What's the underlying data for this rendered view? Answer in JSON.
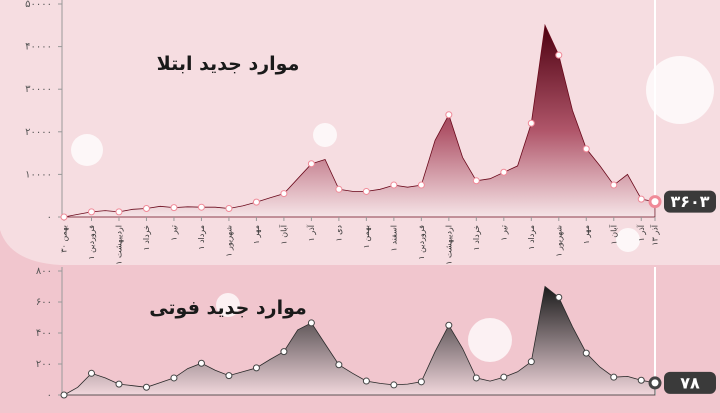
{
  "chart_data": [
    {
      "type": "area",
      "title": "موارد جدید ابتلا",
      "color": "#6b0a1c",
      "categories": [
        "۳۰ بهمن",
        null,
        "۱ فروردین",
        null,
        "۱ اردیبهشت",
        null,
        "۱ خرداد",
        null,
        "۱ تیر",
        null,
        "۱ مرداد",
        null,
        "۱ شهریور",
        null,
        "۱ مهر",
        null,
        "۱ آبان",
        null,
        "۱ آذر",
        null,
        "۱ دی",
        null,
        "۱ بهمن",
        null,
        "۱ اسفند",
        null,
        "۱ فروردین",
        null,
        "۱ اردیبهشت",
        null,
        "۱ خرداد",
        null,
        "۱ تیر",
        null,
        "۱ مرداد",
        null,
        "۱ شهریور",
        null,
        "۱ مهر",
        null,
        "۱ آبان",
        null,
        "۱ آذر",
        "۱۳ آذر"
      ],
      "values": [
        0,
        600,
        1200,
        1500,
        1200,
        1800,
        2000,
        2500,
        2200,
        2400,
        2300,
        2300,
        2000,
        2600,
        3500,
        4500,
        5500,
        9000,
        12500,
        13500,
        6500,
        6000,
        6000,
        6500,
        7500,
        7000,
        7500,
        18000,
        24000,
        14000,
        8500,
        9000,
        10500,
        12000,
        22000,
        45000,
        38000,
        25000,
        16000,
        12000,
        7500,
        10000,
        4200,
        3603
      ],
      "end_label": "۳۶۰۳",
      "ylim": [
        0,
        50000
      ],
      "yticks": [
        {
          "value": 0,
          "label": "۰"
        },
        {
          "value": 10000,
          "label": "۱۰۰۰۰"
        },
        {
          "value": 20000,
          "label": "۲۰۰۰۰"
        },
        {
          "value": 30000,
          "label": "۳۰۰۰۰"
        },
        {
          "value": 40000,
          "label": "۴۰۰۰۰"
        },
        {
          "value": 50000,
          "label": "۵۰۰۰۰"
        }
      ]
    },
    {
      "type": "area",
      "title": "موارد جدید فوتی",
      "color": "#2a2a2a",
      "values": [
        0,
        50,
        140,
        110,
        70,
        60,
        50,
        80,
        110,
        170,
        205,
        160,
        125,
        150,
        175,
        230,
        280,
        420,
        465,
        330,
        195,
        140,
        90,
        75,
        65,
        70,
        85,
        280,
        450,
        300,
        110,
        90,
        115,
        150,
        215,
        700,
        630,
        440,
        270,
        180,
        115,
        120,
        95,
        78
      ],
      "end_label": "۷۸",
      "ylim": [
        0,
        800
      ],
      "yticks": [
        {
          "value": 0,
          "label": "۰"
        },
        {
          "value": 200,
          "label": "۲۰۰"
        },
        {
          "value": 400,
          "label": "۴۰۰"
        },
        {
          "value": 600,
          "label": "۶۰۰"
        },
        {
          "value": 800,
          "label": "۸۰۰"
        }
      ]
    }
  ]
}
